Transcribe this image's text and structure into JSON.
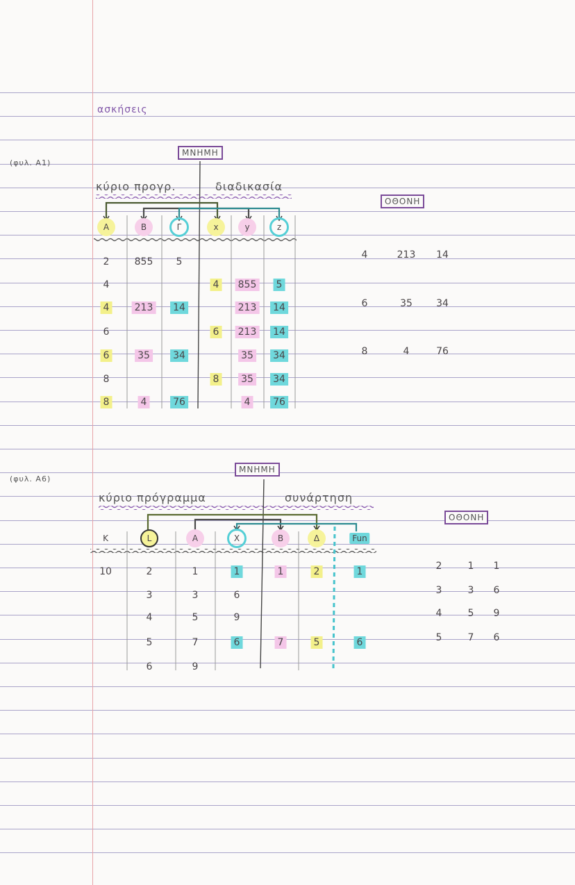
{
  "heading": "ασκήσεις",
  "colors": {
    "title": "#8055a8",
    "yellow": "#f3f08a",
    "pink": "#f4c6e8",
    "cyan": "#6fd8dc",
    "box": "#7a4a98"
  },
  "ex1": {
    "label": "(φυλ. Α1)",
    "memory": "ΜΝΗΜΗ",
    "main_title": "κύριο προγρ.",
    "proc_title": "διαδικασία",
    "screen": "ΟΘΟΝΗ",
    "headers": [
      {
        "v": "Α",
        "hl": "y"
      },
      {
        "v": "Β",
        "hl": "p"
      },
      {
        "v": "Γ",
        "hl": "c"
      },
      {
        "v": "x",
        "hl": "y"
      },
      {
        "v": "y",
        "hl": "p"
      },
      {
        "v": "z",
        "hl": "c"
      }
    ],
    "rows": [
      [
        {
          "v": "2"
        },
        {
          "v": "855"
        },
        {
          "v": "5"
        },
        {
          "v": ""
        },
        {
          "v": ""
        },
        {
          "v": ""
        }
      ],
      [
        {
          "v": "4"
        },
        {
          "v": ""
        },
        {
          "v": ""
        },
        {
          "v": "4",
          "hl": "y"
        },
        {
          "v": "855",
          "hl": "p"
        },
        {
          "v": "5",
          "hl": "c"
        }
      ],
      [
        {
          "v": "4",
          "hl": "y"
        },
        {
          "v": "213",
          "hl": "p"
        },
        {
          "v": "14",
          "hl": "c"
        },
        {
          "v": ""
        },
        {
          "v": "213",
          "hl": "p"
        },
        {
          "v": "14",
          "hl": "c"
        }
      ],
      [
        {
          "v": "6"
        },
        {
          "v": ""
        },
        {
          "v": ""
        },
        {
          "v": "6",
          "hl": "y"
        },
        {
          "v": "213",
          "hl": "p"
        },
        {
          "v": "14",
          "hl": "c"
        }
      ],
      [
        {
          "v": "6",
          "hl": "y"
        },
        {
          "v": "35",
          "hl": "p"
        },
        {
          "v": "34",
          "hl": "c"
        },
        {
          "v": ""
        },
        {
          "v": "35",
          "hl": "p"
        },
        {
          "v": "34",
          "hl": "c"
        }
      ],
      [
        {
          "v": "8"
        },
        {
          "v": ""
        },
        {
          "v": ""
        },
        {
          "v": "8",
          "hl": "y"
        },
        {
          "v": "35",
          "hl": "p"
        },
        {
          "v": "34",
          "hl": "c"
        }
      ],
      [
        {
          "v": "8",
          "hl": "y"
        },
        {
          "v": "4",
          "hl": "p"
        },
        {
          "v": "76",
          "hl": "c"
        },
        {
          "v": ""
        },
        {
          "v": "4",
          "hl": "p"
        },
        {
          "v": "76",
          "hl": "c"
        }
      ]
    ],
    "output": [
      [
        "4",
        "213",
        "14"
      ],
      [
        "6",
        "35",
        "34"
      ],
      [
        "8",
        "4",
        "76"
      ]
    ]
  },
  "ex2": {
    "label": "(φυλ. Α6)",
    "memory": "ΜΝΗΜΗ",
    "main_title": "κύριο πρόγραμμα",
    "func_title": "συνάρτηση",
    "screen": "ΟΘΟΝΗ",
    "headers": [
      {
        "v": "Κ",
        "hl": ""
      },
      {
        "v": "L",
        "hl": "o"
      },
      {
        "v": "Α",
        "hl": "p"
      },
      {
        "v": "X",
        "hl": "c"
      },
      {
        "v": "Β",
        "hl": "p"
      },
      {
        "v": "Δ",
        "hl": "y"
      },
      {
        "v": "Fun",
        "hl": "sq"
      }
    ],
    "rows": [
      [
        {
          "v": "10"
        },
        {
          "v": "2"
        },
        {
          "v": "1"
        },
        {
          "v": "1",
          "hl": "c"
        },
        {
          "v": "1",
          "hl": "p"
        },
        {
          "v": "2",
          "hl": "y"
        },
        {
          "v": "1",
          "hl": "c"
        }
      ],
      [
        {
          "v": ""
        },
        {
          "v": "3"
        },
        {
          "v": "3"
        },
        {
          "v": "6"
        },
        {
          "v": ""
        },
        {
          "v": ""
        },
        {
          "v": ""
        }
      ],
      [
        {
          "v": ""
        },
        {
          "v": "4"
        },
        {
          "v": "5"
        },
        {
          "v": "9"
        },
        {
          "v": ""
        },
        {
          "v": ""
        },
        {
          "v": ""
        }
      ],
      [
        {
          "v": ""
        },
        {
          "v": "5"
        },
        {
          "v": "7"
        },
        {
          "v": "6",
          "hl": "c"
        },
        {
          "v": "7",
          "hl": "p"
        },
        {
          "v": "5",
          "hl": "y"
        },
        {
          "v": "6",
          "hl": "c"
        }
      ],
      [
        {
          "v": ""
        },
        {
          "v": "6"
        },
        {
          "v": "9"
        },
        {
          "v": ""
        },
        {
          "v": ""
        },
        {
          "v": ""
        },
        {
          "v": ""
        }
      ]
    ],
    "output": [
      [
        "2",
        "1",
        "1"
      ],
      [
        "3",
        "3",
        "6"
      ],
      [
        "4",
        "5",
        "9"
      ],
      [
        "5",
        "7",
        "6"
      ]
    ]
  }
}
